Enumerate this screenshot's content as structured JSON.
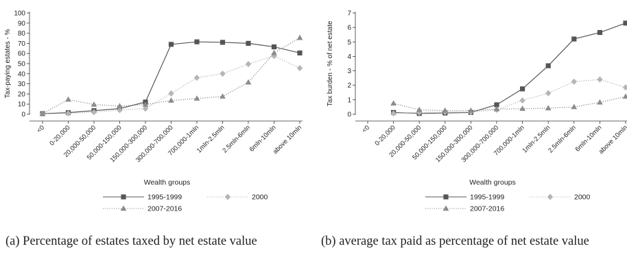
{
  "chart_data": [
    {
      "type": "line",
      "ylabel": "Tax-paying estates - %",
      "xlabel": "Wealth groups",
      "ylim": [
        0,
        100
      ],
      "yticks": [
        0,
        10,
        20,
        30,
        40,
        50,
        60,
        70,
        80,
        90,
        100
      ],
      "categories": [
        "<0",
        "0-20,000",
        "20,000-50,000",
        "50,000-150,000",
        "150,000-300,000",
        "300,000-700,000",
        "700,000-1mln",
        "1mln-2.5mln",
        "2.5mln-6mln",
        "6mln-10mln",
        "above 10mln"
      ],
      "series": [
        {
          "name": "1995-1999",
          "color": "#555555",
          "dash": "solid",
          "marker": "square",
          "values": [
            0.5,
            1.5,
            3.5,
            5.5,
            12,
            69,
            71.5,
            71,
            70,
            66.5,
            60.5
          ]
        },
        {
          "name": "2000",
          "color": "#b5b5b5",
          "dash": "dotted",
          "marker": "diamond",
          "values": [
            0.3,
            0.8,
            2,
            4,
            5.5,
            20.5,
            36,
            40,
            49.5,
            57.5,
            45.5
          ]
        },
        {
          "name": "2007-2016",
          "color": "#8c8c8c",
          "dash": "dotted",
          "marker": "triangle",
          "values": [
            0.5,
            14.5,
            9.5,
            8,
            9.5,
            13.5,
            15.5,
            17.5,
            31.5,
            60.5,
            75.5
          ]
        }
      ],
      "legend": "bottom",
      "caption": "(a) Percentage of estates taxed by net estate value"
    },
    {
      "type": "line",
      "ylabel": "Tax burden - % of net estate",
      "xlabel": "Wealth groups",
      "ylim": [
        0,
        7
      ],
      "yticks": [
        0,
        1,
        2,
        3,
        4,
        5,
        6,
        7
      ],
      "categories": [
        "<0",
        "0-20,000",
        "20,000-50,000",
        "50,000-150,000",
        "150,000-300,000",
        "300,000-700,000",
        "700,000-1mln",
        "1mln-2.5mln",
        "2.5mln-6mln",
        "6mln-10mln",
        "above 10mln"
      ],
      "series": [
        {
          "name": "1995-1999",
          "color": "#555555",
          "dash": "solid",
          "marker": "square",
          "values": [
            null,
            0.12,
            0.05,
            0.08,
            0.12,
            0.65,
            1.75,
            3.35,
            5.2,
            5.65,
            6.3
          ]
        },
        {
          "name": "2000",
          "color": "#b5b5b5",
          "dash": "dotted",
          "marker": "diamond",
          "values": [
            null,
            0.05,
            0.12,
            0.15,
            0.15,
            0.3,
            0.95,
            1.45,
            2.25,
            2.4,
            1.85
          ]
        },
        {
          "name": "2007-2016",
          "color": "#8c8c8c",
          "dash": "dotted",
          "marker": "triangle",
          "values": [
            null,
            0.75,
            0.3,
            0.25,
            0.25,
            0.35,
            0.38,
            0.42,
            0.5,
            0.82,
            1.22
          ]
        }
      ],
      "legend": "bottom",
      "caption": "(b) average tax paid as percentage of net estate value"
    }
  ]
}
